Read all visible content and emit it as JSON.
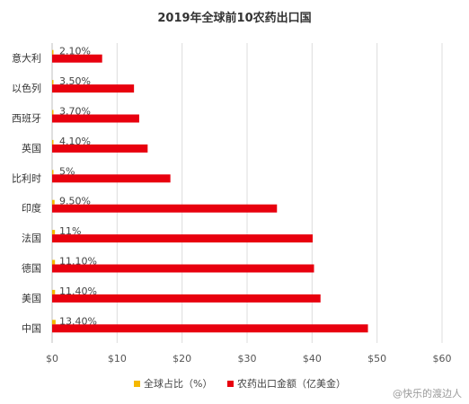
{
  "chart_data": {
    "type": "bar",
    "orientation": "horizontal",
    "title": "2019年全球前10农药出口国",
    "categories": [
      "意大利",
      "以色列",
      "西班牙",
      "英国",
      "比利时",
      "印度",
      "法国",
      "德国",
      "美国",
      "中国"
    ],
    "series": [
      {
        "name": "全球占比（%）",
        "color": "#f5b800",
        "values": [
          2.1,
          3.5,
          3.7,
          4.1,
          5,
          9.5,
          11,
          11.1,
          11.4,
          13.4
        ],
        "labels": [
          "2.10%",
          "3.50%",
          "3.70%",
          "4.10%",
          "5%",
          "9.50%",
          "11%",
          "11.10%",
          "11.40%",
          "13.40%"
        ]
      },
      {
        "name": "农药出口金额（亿美金）",
        "color": "#e8000e",
        "values": [
          7.7,
          12.6,
          13.4,
          14.7,
          18.2,
          34.6,
          40.1,
          40.3,
          41.3,
          48.6
        ]
      }
    ],
    "x_ticks": [
      "$0",
      "$10",
      "$20",
      "$30",
      "$40",
      "$50",
      "$60"
    ],
    "xlim": [
      0,
      60
    ],
    "grid": true,
    "legend_position": "bottom"
  },
  "watermark": "@快乐的渡边人"
}
